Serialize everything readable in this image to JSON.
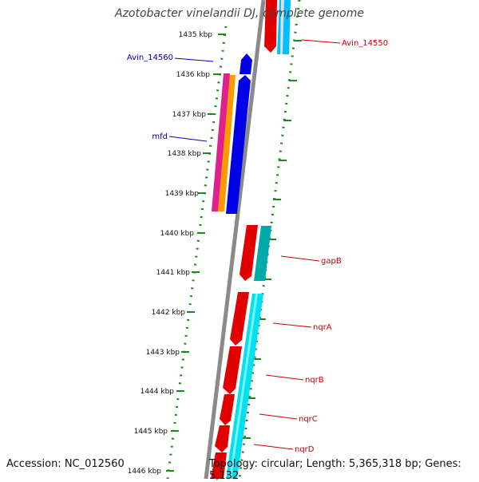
{
  "title": "Azotobacter vinelandii DJ, complete genome",
  "accession_text": "Accession: NC_012560",
  "topology_text": "Topology: circular; Length: 5,365,318 bp; Genes: 5,132",
  "colors": {
    "backbone": "#8a8a8a",
    "ticks": "#1a8a1a",
    "label_red": "#cc0000",
    "label_blue": "#0000aa"
  },
  "kbp_ticks": [
    "1435 kbp",
    "1436 kbp",
    "1437 kbp",
    "1438 kbp",
    "1439 kbp",
    "1440 kbp",
    "1441 kbp",
    "1442 kbp",
    "1443 kbp",
    "1444 kbp",
    "1445 kbp",
    "1446 kbp"
  ],
  "gene_labels": [
    {
      "text": "Avin_14550",
      "side": "right",
      "color": "#cc0000"
    },
    {
      "text": "Avin_14560",
      "side": "left",
      "color": "#0000aa"
    },
    {
      "text": "mfd",
      "side": "left",
      "color": "#0000aa"
    },
    {
      "text": "gapB",
      "side": "right",
      "color": "#cc0000"
    },
    {
      "text": "nqrA",
      "side": "right",
      "color": "#cc0000"
    },
    {
      "text": "nqrB",
      "side": "right",
      "color": "#cc0000"
    },
    {
      "text": "nqrC",
      "side": "right",
      "color": "#cc0000"
    },
    {
      "text": "nqrD",
      "side": "right",
      "color": "#cc0000"
    }
  ]
}
